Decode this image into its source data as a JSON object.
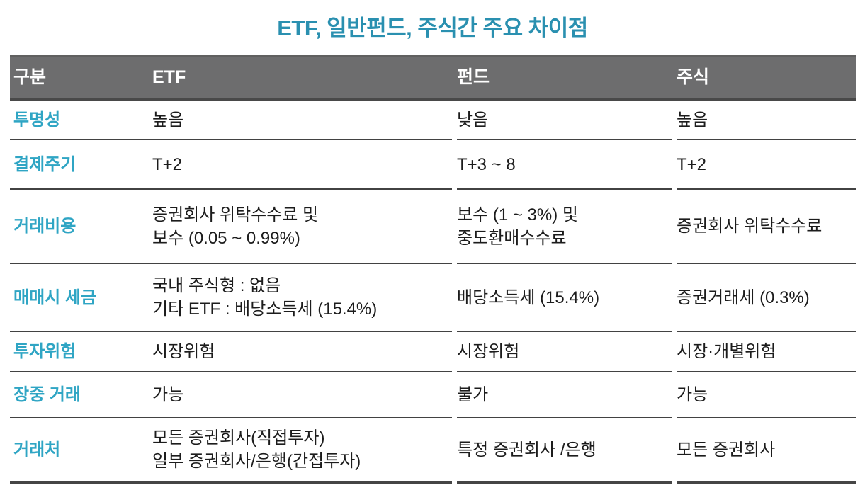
{
  "title": "ETF, 일반펀드, 주식간 주요 차이점",
  "colors": {
    "title_text": "#2a90b0",
    "row_label_text": "#2fa5c4",
    "header_background": "#6d6d6e",
    "header_text": "#ffffff",
    "body_text": "#1c1c1c",
    "divider_line": "#424242"
  },
  "chart_data": {
    "type": "table",
    "title": "ETF, 일반펀드, 주식간 주요 차이점",
    "columns": [
      "구분",
      "ETF",
      "펀드",
      "주식"
    ],
    "rows": [
      [
        "투명성",
        "높음",
        "낮음",
        "높음"
      ],
      [
        "결제주기",
        "T+2",
        "T+3 ~ 8",
        "T+2"
      ],
      [
        "거래비용",
        "증권회사 위탁수수료 및\n보수 (0.05 ~ 0.99%)",
        "보수 (1 ~ 3%) 및\n중도환매수수료",
        "증권회사 위탁수수료"
      ],
      [
        "매매시 세금",
        "국내 주식형 : 없음\n기타 ETF : 배당소득세 (15.4%)",
        "배당소득세 (15.4%)",
        "증권거래세 (0.3%)"
      ],
      [
        "투자위험",
        "시장위험",
        "시장위험",
        "시장·개별위험"
      ],
      [
        "장중 거래",
        "가능",
        "불가",
        "가능"
      ],
      [
        "거래처",
        "모든 증권회사(직접투자)\n일부 증권회사/은행(간접투자)",
        "특정 증권회사 /은행",
        "모든 증권회사"
      ]
    ]
  }
}
